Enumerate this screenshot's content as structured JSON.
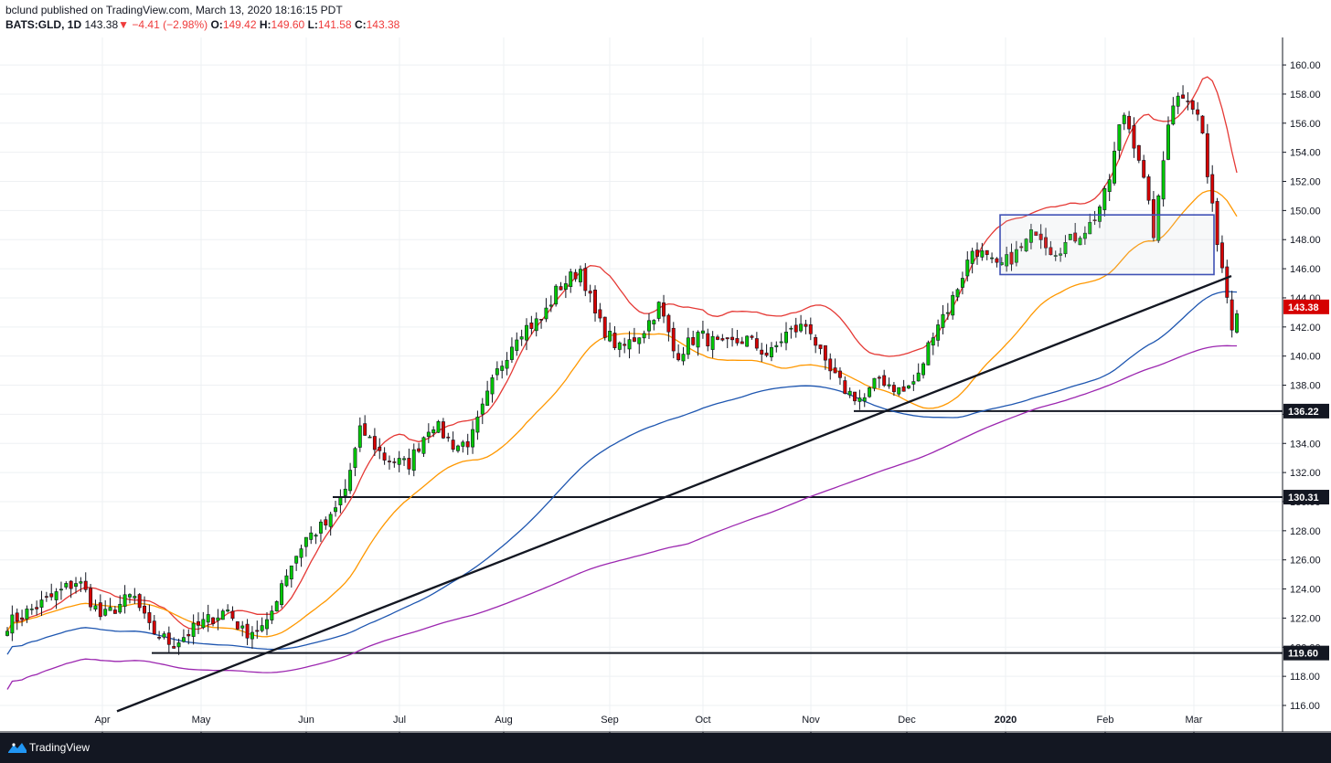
{
  "header": {
    "publisher": "bclund published on TradingView.com, March 13, 2020 18:16:15 PDT",
    "symbol": "BATS:GLD, 1D",
    "last": "143.38",
    "change": "−4.41 (−2.98%)",
    "open_label": "O:",
    "open": "149.42",
    "high_label": "H:",
    "high": "149.60",
    "low_label": "L:",
    "low": "141.58",
    "close_label": "C:",
    "close": "143.38",
    "arrow": "▼"
  },
  "footer": {
    "brand": "TradingView",
    "logo_icon": "tradingview-logo-icon"
  },
  "colors": {
    "up": "#26a69a",
    "up_fill": "#00c805",
    "down": "#d50000",
    "ma_red": "#e53935",
    "ma_orange": "#ff9800",
    "ma_blue": "#1e56b0",
    "ma_purple": "#9c27b0"
  },
  "chart_data": {
    "type": "candlestick",
    "ylim": [
      115.7,
      161.0
    ],
    "y_ticks": [
      "116.00",
      "118.00",
      "120.00",
      "122.00",
      "124.00",
      "126.00",
      "128.00",
      "130.00",
      "132.00",
      "134.00",
      "136.00",
      "138.00",
      "140.00",
      "142.00",
      "144.00",
      "146.00",
      "148.00",
      "150.00",
      "152.00",
      "154.00",
      "156.00",
      "158.00",
      "160.00"
    ],
    "x_labels": [
      "Apr",
      "May",
      "Jun",
      "Jul",
      "Aug",
      "Sep",
      "Oct",
      "Nov",
      "Dec",
      "2020",
      "Feb",
      "Mar"
    ],
    "price_tags": [
      {
        "label": "143.38",
        "value": 143.38,
        "color": "#d50000"
      },
      {
        "label": "136.22",
        "value": 136.22,
        "color": "#131722"
      },
      {
        "label": "130.31",
        "value": 130.31,
        "color": "#131722"
      },
      {
        "label": "119.60",
        "value": 119.6,
        "color": "#131722"
      }
    ],
    "horizontal_levels": [
      {
        "value": 119.6,
        "start": "2019-04-16"
      },
      {
        "value": 130.31,
        "start": "2019-06-20"
      },
      {
        "value": 136.22,
        "start": "2019-11-13"
      }
    ],
    "trendline": {
      "start_value": 115.6,
      "end_value": 145.5
    },
    "rectangle": {
      "top": 149.7,
      "bottom": 145.6
    },
    "ohlc_segments": [
      {
        "period": "Mar-Apr 2019",
        "range": [
          121.0,
          125.0
        ]
      },
      {
        "period": "May 2019",
        "range": [
          119.6,
          122.8
        ]
      },
      {
        "period": "Jun 2019",
        "range": [
          121.2,
          135.6
        ]
      },
      {
        "period": "Jul 2019",
        "range": [
          130.4,
          136.5
        ]
      },
      {
        "period": "Aug 2019",
        "range": [
          133.0,
          145.0
        ]
      },
      {
        "period": "Sep 2019",
        "range": [
          139.4,
          146.8
        ]
      },
      {
        "period": "Oct 2019",
        "range": [
          137.7,
          143.0
        ]
      },
      {
        "period": "Nov 2019",
        "range": [
          136.2,
          143.0
        ]
      },
      {
        "period": "Dec 2019",
        "range": [
          136.4,
          144.0
        ]
      },
      {
        "period": "Jan 2020",
        "range": [
          145.2,
          149.5
        ]
      },
      {
        "period": "Feb 2020",
        "range": [
          146.0,
          158.5
        ]
      },
      {
        "period": "Mar 2020",
        "range": [
          141.58,
          159.4
        ]
      }
    ],
    "moving_averages": [
      {
        "color": "#e53935",
        "last": 152.6
      },
      {
        "color": "#ff9800",
        "last": 149.6
      },
      {
        "color": "#1e56b0",
        "last": 144.4
      },
      {
        "color": "#9c27b0",
        "last": 140.7
      }
    ]
  }
}
